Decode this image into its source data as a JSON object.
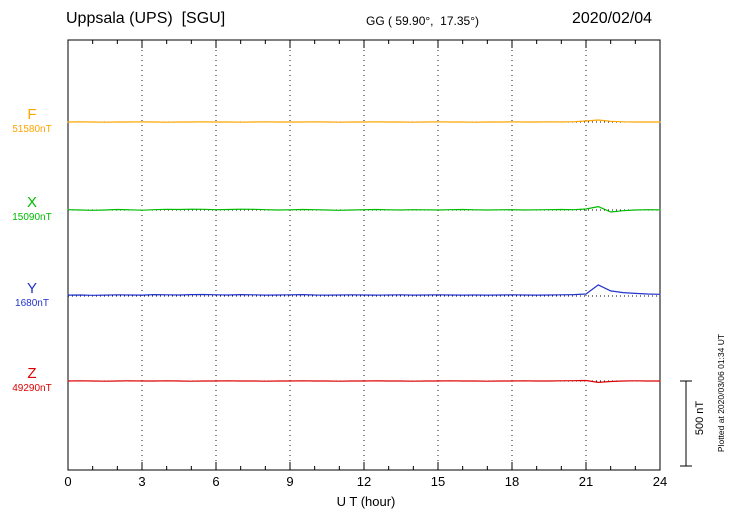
{
  "header": {
    "station": "Uppsala (UPS)  [SGU]",
    "coords": "GG ( 59.90°,  17.35°)",
    "date": "2020/02/04"
  },
  "axis": {
    "xlabel": "U T (hour)",
    "ticks": [
      "0",
      "3",
      "6",
      "9",
      "12",
      "15",
      "18",
      "21",
      "24"
    ]
  },
  "scalebar": {
    "label": "500 nT",
    "nT": 500
  },
  "footer": {
    "plotted": "Plotted at 2020/03/06 01:34 UT"
  },
  "chart_data": {
    "type": "line",
    "title": "Uppsala (UPS) [SGU] magnetogram",
    "date": "2020/02/04",
    "xlabel": "U T (hour)",
    "x_range_hours": [
      0,
      24
    ],
    "x_ticks": [
      0,
      3,
      6,
      9,
      12,
      15,
      18,
      21,
      24
    ],
    "dt_hours": 0.5,
    "scale_reference_nT": 500,
    "grid": "vertical-dotted",
    "series": [
      {
        "name": "F",
        "baseline_label": "51580nT",
        "baseline_nT": 51580,
        "color": "#FFA500",
        "offsets_nT": [
          0,
          1,
          0,
          -1,
          0,
          0,
          1,
          0,
          -1,
          0,
          0,
          1,
          0,
          0,
          -1,
          0,
          1,
          0,
          0,
          0,
          1,
          0,
          -1,
          0,
          0,
          1,
          0,
          0,
          -1,
          0,
          1,
          0,
          0,
          -1,
          0,
          0,
          1,
          0,
          0,
          1,
          0,
          2,
          6,
          12,
          4,
          1,
          0,
          0,
          0
        ]
      },
      {
        "name": "X",
        "baseline_label": "15090nT",
        "baseline_nT": 15090,
        "color": "#00BB00",
        "offsets_nT": [
          2,
          0,
          -2,
          0,
          3,
          1,
          -1,
          2,
          4,
          3,
          5,
          4,
          2,
          3,
          5,
          4,
          2,
          0,
          1,
          3,
          2,
          0,
          -2,
          0,
          2,
          3,
          1,
          0,
          2,
          1,
          0,
          2,
          3,
          1,
          0,
          1,
          2,
          0,
          1,
          2,
          3,
          2,
          6,
          20,
          -12,
          -4,
          0,
          2,
          1
        ]
      },
      {
        "name": "Y",
        "baseline_label": "1680nT",
        "baseline_nT": 1680,
        "color": "#2233CC",
        "offsets_nT": [
          5,
          6,
          4,
          5,
          7,
          6,
          5,
          8,
          7,
          6,
          8,
          9,
          7,
          6,
          8,
          7,
          5,
          6,
          7,
          8,
          6,
          5,
          6,
          7,
          6,
          5,
          6,
          7,
          5,
          6,
          7,
          6,
          5,
          6,
          5,
          6,
          7,
          6,
          5,
          6,
          7,
          8,
          12,
          65,
          30,
          20,
          15,
          12,
          10
        ]
      },
      {
        "name": "Z",
        "baseline_label": "49290nT",
        "baseline_nT": 49290,
        "color": "#DD0000",
        "offsets_nT": [
          0,
          1,
          0,
          -1,
          0,
          1,
          0,
          0,
          1,
          0,
          -1,
          0,
          0,
          1,
          0,
          0,
          -1,
          0,
          0,
          1,
          0,
          0,
          -1,
          0,
          0,
          1,
          0,
          0,
          -1,
          0,
          0,
          1,
          0,
          0,
          -1,
          0,
          0,
          1,
          0,
          0,
          1,
          2,
          3,
          -8,
          -3,
          0,
          1,
          0,
          0
        ]
      }
    ]
  }
}
